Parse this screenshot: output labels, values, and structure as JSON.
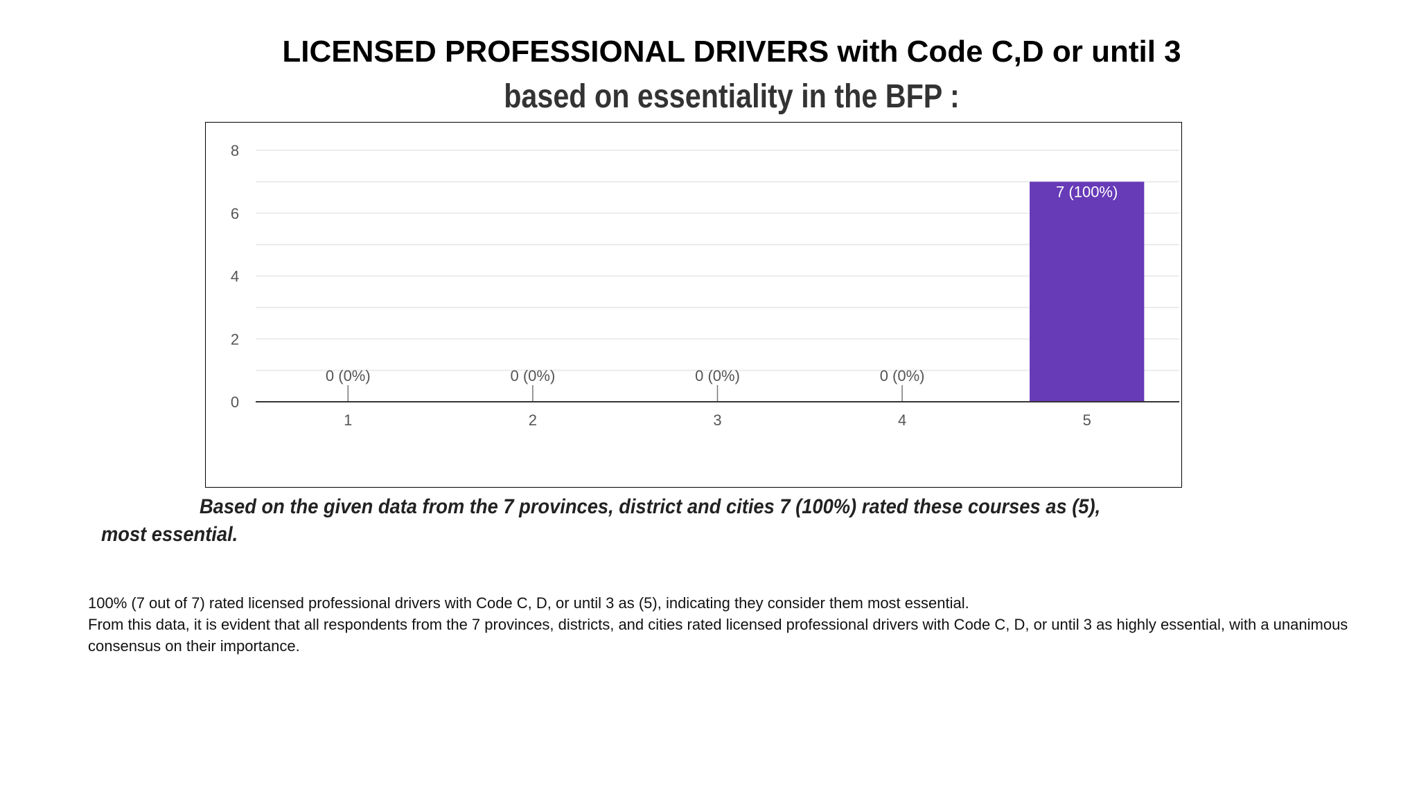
{
  "title": {
    "line1": "LICENSED PROFESSIONAL DRIVERS with Code C,D or until 3",
    "line2": "based on essentiality in the BFP :"
  },
  "summary": "Based on the given data from the 7 provinces, district and cities 7 (100%) rated these courses as (5), most essential.",
  "notes": {
    "line1": "100% (7 out of 7) rated licensed professional drivers with Code C, D, or until 3 as (5), indicating they consider them most essential.",
    "line2": "From this data, it is evident that all respondents from the 7 provinces, districts, and cities rated licensed professional drivers with Code C, D, or until 3 as highly essential, with a unanimous consensus on their importance."
  },
  "chart_data": {
    "type": "bar",
    "categories": [
      "1",
      "2",
      "3",
      "4",
      "5"
    ],
    "values": [
      0,
      0,
      0,
      0,
      7
    ],
    "data_labels": [
      "0 (0%)",
      "0 (0%)",
      "0 (0%)",
      "0 (0%)",
      "7 (100%)"
    ],
    "y_ticks": [
      "0",
      "2",
      "4",
      "6",
      "8"
    ],
    "ylim": [
      0,
      8
    ],
    "grid": true,
    "legend": "none",
    "bar_color": "#673ab7",
    "title": "",
    "xlabel": "",
    "ylabel": ""
  }
}
